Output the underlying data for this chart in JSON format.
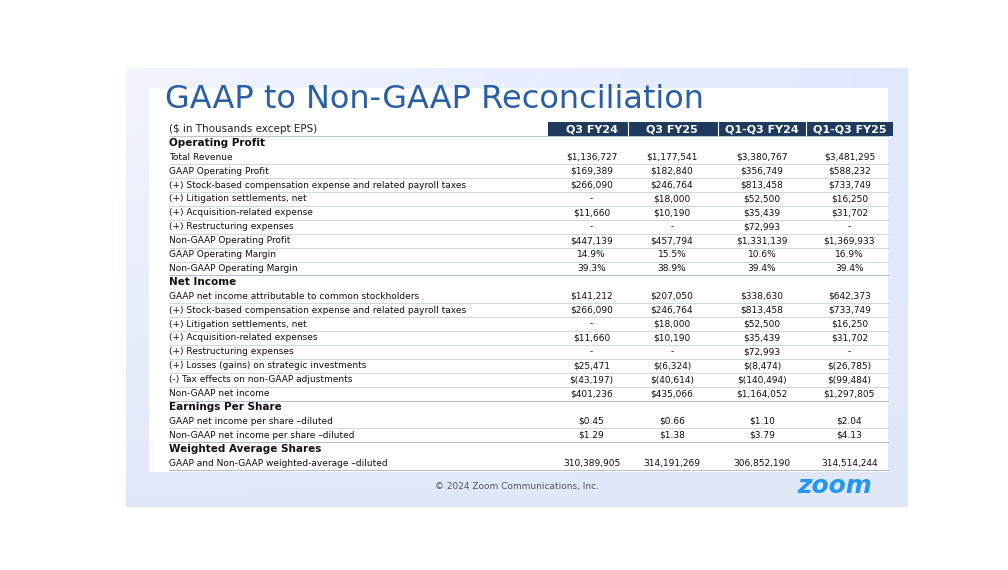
{
  "title": "GAAP to Non-GAAP Reconciliation",
  "subtitle": "($ in Thousands except EPS)",
  "footer": "© 2024 Zoom Communications, Inc.",
  "header_cols": [
    "Q3 FY24",
    "Q3 FY25",
    "Q1-Q3 FY24",
    "Q1-Q3 FY25"
  ],
  "header_bg": "#1e3a5f",
  "header_fg": "#ffffff",
  "title_color": "#2a5fa5",
  "zoom_color": "#2196f3",
  "rows": [
    {
      "label": "Total Revenue",
      "section": "Operating Profit",
      "values": [
        "$1,136,727",
        "$1,177,541",
        "$3,380,767",
        "$3,481,295"
      ],
      "bold": false
    },
    {
      "label": "GAAP Operating Profit",
      "section": "Operating Profit",
      "values": [
        "$169,389",
        "$182,840",
        "$356,749",
        "$588,232"
      ],
      "bold": false
    },
    {
      "label": "(+) Stock-based compensation expense and related payroll taxes",
      "section": "Operating Profit",
      "values": [
        "$266,090",
        "$246,764",
        "$813,458",
        "$733,749"
      ],
      "bold": false
    },
    {
      "label": "(+) Litigation settlements, net",
      "section": "Operating Profit",
      "values": [
        "-",
        "$18,000",
        "$52,500",
        "$16,250"
      ],
      "bold": false
    },
    {
      "label": "(+) Acquisition-related expense",
      "section": "Operating Profit",
      "values": [
        "$11,660",
        "$10,190",
        "$35,439",
        "$31,702"
      ],
      "bold": false
    },
    {
      "label": "(+) Restructuring expenses",
      "section": "Operating Profit",
      "values": [
        "-",
        "-",
        "$72,993",
        "-"
      ],
      "bold": false
    },
    {
      "label": "Non-GAAP Operating Profit",
      "section": "Operating Profit",
      "values": [
        "$447,139",
        "$457,794",
        "$1,331,139",
        "$1,369,933"
      ],
      "bold": false
    },
    {
      "label": "GAAP Operating Margin",
      "section": "Operating Profit",
      "values": [
        "14.9%",
        "15.5%",
        "10.6%",
        "16.9%"
      ],
      "bold": false
    },
    {
      "label": "Non-GAAP Operating Margin",
      "section": "Operating Profit",
      "values": [
        "39.3%",
        "38.9%",
        "39.4%",
        "39.4%"
      ],
      "bold": false
    },
    {
      "label": "GAAP net income attributable to common stockholders",
      "section": "Net Income",
      "values": [
        "$141,212",
        "$207,050",
        "$338,630",
        "$642,373"
      ],
      "bold": false
    },
    {
      "label": "(+) Stock-based compensation expense and related payroll taxes",
      "section": "Net Income",
      "values": [
        "$266,090",
        "$246,764",
        "$813,458",
        "$733,749"
      ],
      "bold": false
    },
    {
      "label": "(+) Litigation settlements, net",
      "section": "Net Income",
      "values": [
        "-",
        "$18,000",
        "$52,500",
        "$16,250"
      ],
      "bold": false
    },
    {
      "label": "(+) Acquisition-related expenses",
      "section": "Net Income",
      "values": [
        "$11,660",
        "$10,190",
        "$35,439",
        "$31,702"
      ],
      "bold": false
    },
    {
      "label": "(+) Restructuring expenses",
      "section": "Net Income",
      "values": [
        "-",
        "-",
        "$72,993",
        "-"
      ],
      "bold": false
    },
    {
      "label": "(+) Losses (gains) on strategic investments",
      "section": "Net Income",
      "values": [
        "$25,471",
        "$(6,324)",
        "$(8,474)",
        "$(26,785)"
      ],
      "bold": false
    },
    {
      "label": "(-) Tax effects on non-GAAP adjustments",
      "section": "Net Income",
      "values": [
        "$(43,197)",
        "$(40,614)",
        "$(140,494)",
        "$(99,484)"
      ],
      "bold": false
    },
    {
      "label": "Non-GAAP net income",
      "section": "Net Income",
      "values": [
        "$401,236",
        "$435,066",
        "$1,164,052",
        "$1,297,805"
      ],
      "bold": false
    },
    {
      "label": "GAAP net income per share –diluted",
      "section": "Earnings Per Share",
      "values": [
        "$0.45",
        "$0.66",
        "$1.10",
        "$2.04"
      ],
      "bold": false
    },
    {
      "label": "Non-GAAP net income per share –diluted",
      "section": "Earnings Per Share",
      "values": [
        "$1.29",
        "$1.38",
        "$3.79",
        "$4.13"
      ],
      "bold": false
    },
    {
      "label": "GAAP and Non-GAAP weighted-average –diluted",
      "section": "Weighted Average Shares",
      "values": [
        "310,389,905",
        "314,191,269",
        "306,852,190",
        "314,514,244"
      ],
      "bold": false
    }
  ]
}
